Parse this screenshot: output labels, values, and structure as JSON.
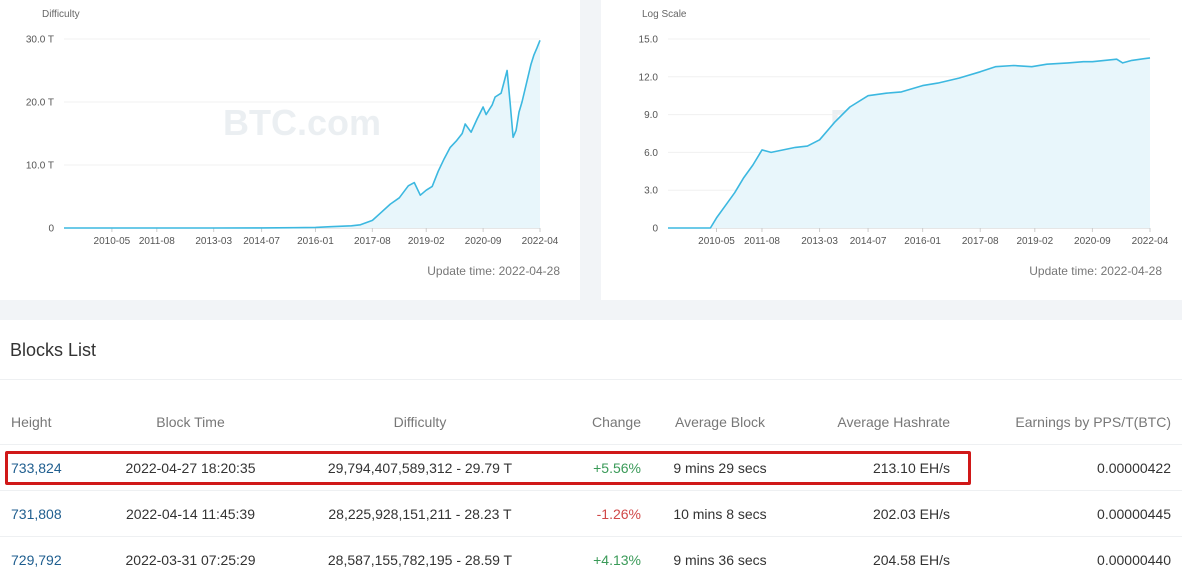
{
  "difficulty_panel": {
    "update_label": "Update time: 2022-04-28"
  },
  "logscale_panel": {
    "update_label": "Update time: 2022-04-28"
  },
  "chart_data": [
    {
      "type": "area",
      "title": "Difficulty",
      "watermark": "BTC.com",
      "x_tick_labels": [
        "2010-05",
        "2011-08",
        "2013-03",
        "2014-07",
        "2016-01",
        "2017-08",
        "2019-02",
        "2020-09",
        "2022-04"
      ],
      "y_tick_labels": [
        "0",
        "10.0 T",
        "20.0 T",
        "30.0 T"
      ],
      "ylim": [
        0,
        30
      ],
      "x": [
        "2009-01",
        "2010-05",
        "2011-08",
        "2013-03",
        "2014-07",
        "2015-06",
        "2016-01",
        "2016-06",
        "2017-01",
        "2017-04",
        "2017-08",
        "2017-11",
        "2018-02",
        "2018-05",
        "2018-08",
        "2018-10",
        "2018-12",
        "2019-02",
        "2019-04",
        "2019-06",
        "2019-08",
        "2019-10",
        "2019-12",
        "2020-02",
        "2020-03",
        "2020-05",
        "2020-07",
        "2020-09",
        "2020-10",
        "2020-12",
        "2021-01",
        "2021-03",
        "2021-05",
        "2021-06",
        "2021-07",
        "2021-08",
        "2021-09",
        "2021-10",
        "2021-11",
        "2021-12",
        "2022-01",
        "2022-02",
        "2022-03",
        "2022-04"
      ],
      "values": [
        0,
        0,
        0,
        0,
        0.02,
        0.05,
        0.1,
        0.2,
        0.35,
        0.5,
        1.2,
        2.5,
        3.8,
        4.8,
        6.7,
        7.2,
        5.2,
        6.0,
        6.6,
        9.0,
        11.0,
        12.8,
        13.8,
        15.0,
        16.5,
        15.2,
        17.3,
        19.2,
        18.0,
        19.5,
        20.8,
        21.4,
        25.0,
        19.9,
        14.4,
        15.5,
        18.4,
        20.0,
        22.0,
        24.0,
        26.0,
        27.5,
        28.6,
        29.8
      ],
      "series_color": "#3cb8e0",
      "fill_color": "#e8f6fb",
      "grid": true
    },
    {
      "type": "area",
      "title": "Log Scale",
      "watermark": "BTC.com",
      "x_tick_labels": [
        "2010-05",
        "2011-08",
        "2013-03",
        "2014-07",
        "2016-01",
        "2017-08",
        "2019-02",
        "2020-09",
        "2022-04"
      ],
      "y_tick_labels": [
        "0",
        "3.0",
        "6.0",
        "9.0",
        "12.0",
        "15.0"
      ],
      "ylim": [
        0,
        15
      ],
      "x": [
        "2009-01",
        "2010-03",
        "2010-05",
        "2010-08",
        "2010-11",
        "2011-02",
        "2011-05",
        "2011-08",
        "2011-11",
        "2012-03",
        "2012-07",
        "2012-11",
        "2013-03",
        "2013-08",
        "2014-01",
        "2014-07",
        "2015-01",
        "2015-06",
        "2016-01",
        "2016-06",
        "2017-01",
        "2017-08",
        "2018-01",
        "2018-07",
        "2019-01",
        "2019-06",
        "2020-01",
        "2020-06",
        "2020-09",
        "2021-01",
        "2021-05",
        "2021-07",
        "2021-10",
        "2022-04"
      ],
      "values": [
        0,
        0,
        0.8,
        1.8,
        2.8,
        4.0,
        5.0,
        6.2,
        6.0,
        6.2,
        6.4,
        6.5,
        7.0,
        8.4,
        9.6,
        10.5,
        10.7,
        10.8,
        11.3,
        11.5,
        11.9,
        12.4,
        12.8,
        12.9,
        12.8,
        13.0,
        13.1,
        13.2,
        13.2,
        13.3,
        13.4,
        13.1,
        13.3,
        13.5
      ],
      "series_color": "#3cb8e0",
      "fill_color": "#e8f6fb",
      "grid": true
    }
  ],
  "blocks": {
    "title": "Blocks List",
    "columns": {
      "height": "Height",
      "time": "Block Time",
      "difficulty": "Difficulty",
      "change": "Change",
      "avg_block": "Average Block",
      "avg_hashrate": "Average Hashrate",
      "earnings": "Earnings by PPS/T(BTC)"
    },
    "rows": [
      {
        "height": "733,824",
        "time": "2022-04-27 18:20:35",
        "difficulty": "29,794,407,589,312 - 29.79 T",
        "change": "+5.56%",
        "avg_block": "9 mins 29 secs",
        "avg_hashrate": "213.10 EH/s",
        "earnings": "0.00000422"
      },
      {
        "height": "731,808",
        "time": "2022-04-14 11:45:39",
        "difficulty": "28,225,928,151,211 - 28.23 T",
        "change": "-1.26%",
        "avg_block": "10 mins 8 secs",
        "avg_hashrate": "202.03 EH/s",
        "earnings": "0.00000445"
      },
      {
        "height": "729,792",
        "time": "2022-03-31 07:25:29",
        "difficulty": "28,587,155,782,195 - 28.59 T",
        "change": "+4.13%",
        "avg_block": "9 mins 36 secs",
        "avg_hashrate": "204.58 EH/s",
        "earnings": "0.00000440"
      }
    ]
  },
  "colors": {
    "link": "#1f5e8f",
    "positive": "#3a9a58",
    "negative": "#d04848",
    "highlight_border": "#d01818"
  }
}
